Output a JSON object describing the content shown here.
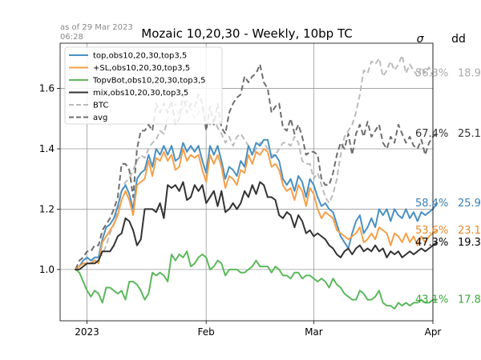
{
  "chart_data": {
    "type": "line",
    "title": "Mozaic 10,20,30 - Weekly, 10bp TC",
    "timestamp_line1": "as of 29 Mar 2023",
    "timestamp_line2": "06:28",
    "xlabel": "",
    "ylabel": "",
    "x_start": "2022-12-29",
    "xlim": [
      "2022-12-25",
      "2023-04-01"
    ],
    "ylim": [
      0.83,
      1.75
    ],
    "x_ticks": [
      {
        "date": "2023-01-01",
        "label": "2023"
      },
      {
        "date": "2023-02-01",
        "label": "Feb"
      },
      {
        "date": "2023-03-01",
        "label": "Mar"
      },
      {
        "date": "2023-04-01",
        "label": "Apr"
      }
    ],
    "y_ticks": [
      1.0,
      1.2,
      1.4,
      1.6
    ],
    "y_tick_labels": [
      "1.0",
      "1.2",
      "1.4",
      "1.6"
    ],
    "grid": true,
    "legend_position": "top-left",
    "right_header": {
      "sigma": "σ",
      "dd": "dd"
    },
    "series": [
      {
        "name": "top,obs10,20,30,top3,5",
        "color": "#4a90c2",
        "style": "solid",
        "annotation": {
          "sigma": "58.4%",
          "dd": "25.9",
          "color": "#3a7fb5"
        },
        "values": [
          1.0,
          1.01,
          1.03,
          1.04,
          1.03,
          1.04,
          1.04,
          1.1,
          1.14,
          1.15,
          1.17,
          1.21,
          1.26,
          1.28,
          1.25,
          1.2,
          1.3,
          1.32,
          1.33,
          1.38,
          1.34,
          1.4,
          1.38,
          1.41,
          1.38,
          1.41,
          1.36,
          1.37,
          1.42,
          1.39,
          1.41,
          1.39,
          1.41,
          1.36,
          1.32,
          1.41,
          1.38,
          1.41,
          1.36,
          1.3,
          1.34,
          1.33,
          1.31,
          1.36,
          1.34,
          1.41,
          1.38,
          1.42,
          1.41,
          1.43,
          1.43,
          1.37,
          1.38,
          1.36,
          1.3,
          1.28,
          1.3,
          1.26,
          1.31,
          1.29,
          1.24,
          1.3,
          1.28,
          1.24,
          1.21,
          1.22,
          1.2,
          1.19,
          1.15,
          1.11,
          1.09,
          1.07,
          1.12,
          1.16,
          1.18,
          1.12,
          1.14,
          1.17,
          1.14,
          1.2,
          1.18,
          1.2,
          1.16,
          1.2,
          1.18,
          1.17,
          1.2,
          1.17,
          1.19,
          1.16,
          1.19,
          1.18,
          1.19,
          1.2,
          1.22
        ]
      },
      {
        "name": "+SL,obs10,20,30,top3,5",
        "color": "#f5a04a",
        "style": "solid",
        "annotation": {
          "sigma": "53.6%",
          "dd": "23.1",
          "color": "#e8872a"
        },
        "values": [
          1.0,
          1.01,
          1.02,
          1.02,
          1.02,
          1.03,
          1.02,
          1.09,
          1.11,
          1.13,
          1.15,
          1.18,
          1.23,
          1.26,
          1.23,
          1.18,
          1.28,
          1.29,
          1.3,
          1.36,
          1.31,
          1.37,
          1.36,
          1.39,
          1.36,
          1.38,
          1.33,
          1.34,
          1.4,
          1.36,
          1.38,
          1.37,
          1.38,
          1.33,
          1.29,
          1.38,
          1.35,
          1.38,
          1.34,
          1.27,
          1.31,
          1.3,
          1.28,
          1.33,
          1.32,
          1.38,
          1.35,
          1.39,
          1.38,
          1.4,
          1.39,
          1.34,
          1.35,
          1.33,
          1.28,
          1.26,
          1.27,
          1.23,
          1.28,
          1.26,
          1.21,
          1.27,
          1.25,
          1.2,
          1.17,
          1.19,
          1.18,
          1.17,
          1.13,
          1.12,
          1.11,
          1.1,
          1.11,
          1.12,
          1.14,
          1.09,
          1.1,
          1.12,
          1.1,
          1.14,
          1.13,
          1.12,
          1.08,
          1.12,
          1.11,
          1.09,
          1.12,
          1.09,
          1.11,
          1.08,
          1.11,
          1.09,
          1.11,
          1.12,
          1.13
        ]
      },
      {
        "name": "TopvBot,obs10,20,30,top3,5",
        "color": "#5cb85c",
        "style": "solid",
        "annotation": {
          "sigma": "43.1%",
          "dd": "17.8",
          "color": "#3aa83a"
        },
        "values": [
          1.0,
          0.99,
          0.96,
          0.93,
          0.91,
          0.93,
          0.92,
          0.89,
          0.94,
          0.94,
          0.93,
          0.92,
          0.93,
          0.9,
          0.96,
          0.96,
          0.95,
          0.93,
          0.9,
          0.92,
          0.99,
          0.98,
          0.99,
          0.98,
          0.96,
          1.05,
          1.03,
          1.05,
          1.04,
          1.06,
          1.01,
          1.02,
          1.04,
          1.05,
          1.04,
          1.0,
          1.01,
          1.03,
          1.02,
          0.98,
          1.0,
          1.0,
          1.0,
          0.99,
          0.99,
          1.0,
          1.01,
          1.03,
          1.01,
          1.01,
          1.01,
          0.99,
          1.01,
          1.0,
          0.98,
          0.98,
          0.97,
          0.99,
          0.99,
          0.97,
          0.98,
          0.98,
          0.97,
          0.96,
          0.97,
          0.96,
          0.94,
          0.97,
          0.95,
          0.94,
          0.92,
          0.91,
          0.9,
          0.9,
          0.93,
          0.92,
          0.9,
          0.9,
          0.91,
          0.93,
          0.89,
          0.88,
          0.88,
          0.87,
          0.89,
          0.88,
          0.89,
          0.88,
          0.89,
          0.89,
          0.9,
          0.89,
          0.89,
          0.9,
          0.9
        ]
      },
      {
        "name": "mix,obs10,20,30,top3,5",
        "color": "#333333",
        "style": "solid",
        "annotation": {
          "sigma": "47.3%",
          "dd": "19.3",
          "color": "#000000"
        },
        "values": [
          1.0,
          1.0,
          1.01,
          1.02,
          1.02,
          1.02,
          1.03,
          1.06,
          1.06,
          1.06,
          1.08,
          1.11,
          1.12,
          1.17,
          1.16,
          1.13,
          1.08,
          1.1,
          1.2,
          1.2,
          1.2,
          1.19,
          1.22,
          1.17,
          1.28,
          1.27,
          1.28,
          1.26,
          1.29,
          1.23,
          1.24,
          1.28,
          1.26,
          1.28,
          1.22,
          1.24,
          1.26,
          1.21,
          1.26,
          1.19,
          1.2,
          1.22,
          1.2,
          1.22,
          1.26,
          1.24,
          1.28,
          1.25,
          1.29,
          1.28,
          1.24,
          1.24,
          1.23,
          1.18,
          1.17,
          1.19,
          1.18,
          1.14,
          1.18,
          1.16,
          1.12,
          1.13,
          1.11,
          1.12,
          1.11,
          1.1,
          1.08,
          1.07,
          1.05,
          1.04,
          1.06,
          1.07,
          1.05,
          1.07,
          1.08,
          1.06,
          1.07,
          1.06,
          1.08,
          1.06,
          1.07,
          1.04,
          1.06,
          1.05,
          1.06,
          1.04,
          1.05,
          1.06,
          1.05,
          1.06,
          1.07,
          1.06,
          1.07,
          1.08,
          1.09
        ]
      },
      {
        "name": "BTC",
        "color": "#bbbbbb",
        "style": "dashed",
        "annotation": {
          "sigma": "56.3%",
          "dd": "18.9",
          "color": "#aaaaaa"
        },
        "values": [
          1.0,
          1.01,
          1.02,
          1.02,
          1.03,
          1.03,
          1.04,
          1.05,
          1.08,
          1.12,
          1.15,
          1.2,
          1.26,
          1.29,
          1.3,
          1.33,
          1.36,
          1.38,
          1.37,
          1.4,
          1.42,
          1.43,
          1.46,
          1.45,
          1.5,
          1.52,
          1.55,
          1.5,
          1.54,
          1.56,
          1.53,
          1.5,
          1.52,
          1.54,
          1.5,
          1.48,
          1.5,
          1.47,
          1.45,
          1.42,
          1.44,
          1.41,
          1.44,
          1.45,
          1.43,
          1.41,
          1.38,
          1.4,
          1.42,
          1.42,
          1.4,
          1.38,
          1.38,
          1.4,
          1.42,
          1.42,
          1.41,
          1.44,
          1.42,
          1.36,
          1.35,
          1.35,
          1.3,
          1.32,
          1.28,
          1.24,
          1.22,
          1.25,
          1.3,
          1.38,
          1.44,
          1.46,
          1.48,
          1.52,
          1.58,
          1.66,
          1.65,
          1.69,
          1.68,
          1.7,
          1.64,
          1.66,
          1.69,
          1.66,
          1.68,
          1.71,
          1.65,
          1.68,
          1.66,
          1.64,
          1.67,
          1.65,
          1.67,
          1.64,
          1.65
        ]
      },
      {
        "name": "avg",
        "color": "#6e6e6e",
        "style": "dashed",
        "annotation": {
          "sigma": "67.4%",
          "dd": "25.1",
          "color": "#333333"
        },
        "values": [
          1.0,
          1.03,
          1.04,
          1.06,
          1.06,
          1.08,
          1.08,
          1.13,
          1.15,
          1.17,
          1.2,
          1.24,
          1.35,
          1.35,
          1.33,
          1.24,
          1.4,
          1.46,
          1.46,
          1.48,
          1.46,
          1.55,
          1.52,
          1.55,
          1.52,
          1.56,
          1.48,
          1.5,
          1.58,
          1.52,
          1.55,
          1.54,
          1.58,
          1.55,
          1.46,
          1.54,
          1.48,
          1.55,
          1.47,
          1.45,
          1.52,
          1.55,
          1.57,
          1.58,
          1.64,
          1.62,
          1.64,
          1.65,
          1.68,
          1.62,
          1.6,
          1.52,
          1.54,
          1.55,
          1.47,
          1.46,
          1.5,
          1.45,
          1.48,
          1.44,
          1.38,
          1.39,
          1.39,
          1.38,
          1.3,
          1.28,
          1.28,
          1.32,
          1.38,
          1.42,
          1.4,
          1.45,
          1.38,
          1.45,
          1.48,
          1.44,
          1.49,
          1.44,
          1.46,
          1.48,
          1.42,
          1.4,
          1.44,
          1.42,
          1.48,
          1.45,
          1.42,
          1.44,
          1.41,
          1.4,
          1.43,
          1.38,
          1.42,
          1.44,
          1.45
        ]
      }
    ]
  }
}
